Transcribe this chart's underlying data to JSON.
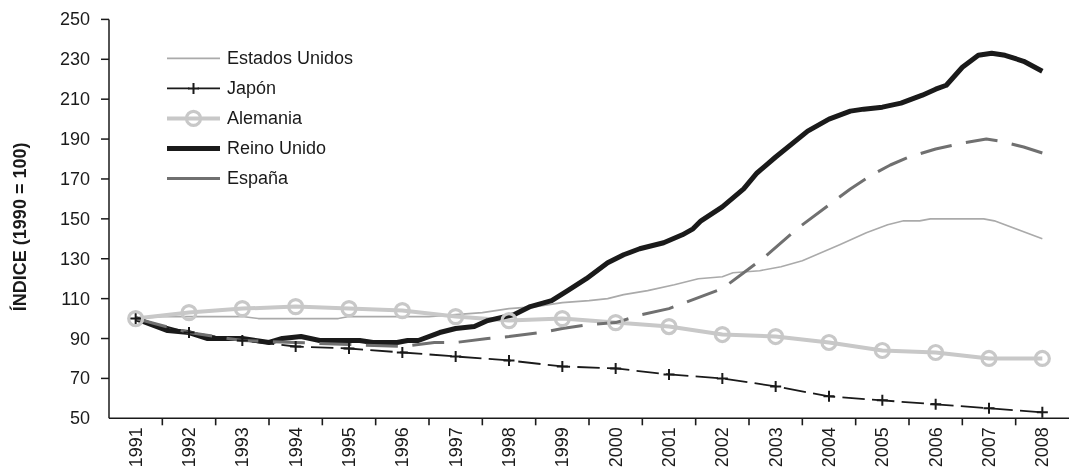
{
  "chart_data": {
    "type": "line",
    "ylabel": "ÍNDICE (1990 = 100)",
    "x": [
      1991,
      1992,
      1993,
      1994,
      1995,
      1996,
      1997,
      1998,
      1999,
      2000,
      2001,
      2002,
      2003,
      2004,
      2005,
      2006,
      2007,
      2008
    ],
    "xlim": [
      1990.5,
      2008.5
    ],
    "xticks": [
      1991,
      {
        "value": 1991.5,
        "label": null
      },
      1992,
      {
        "value": 1992.5,
        "label": null
      },
      1993,
      {
        "value": 1993.5,
        "label": null
      },
      1994,
      {
        "value": 1994.5,
        "label": null
      },
      1995,
      {
        "value": 1995.5,
        "label": null
      },
      1996,
      {
        "value": 1996.5,
        "label": null
      },
      1997,
      {
        "value": 1997.5,
        "label": null
      },
      1998,
      {
        "value": 1998.5,
        "label": null
      },
      1999,
      {
        "value": 1999.5,
        "label": null
      },
      2000,
      {
        "value": 2000.5,
        "label": null
      },
      2001,
      {
        "value": 2001.5,
        "label": null
      },
      2002,
      {
        "value": 2002.5,
        "label": null
      },
      2003,
      {
        "value": 2003.5,
        "label": null
      },
      2004,
      {
        "value": 2004.5,
        "label": null
      },
      2005,
      {
        "value": 2005.5,
        "label": null
      },
      2006,
      {
        "value": 2006.5,
        "label": null
      },
      2007,
      {
        "value": 2007.5,
        "label": null
      },
      2008
    ],
    "ylim": [
      50,
      250
    ],
    "yticks": [
      50,
      70,
      90,
      110,
      130,
      150,
      170,
      190,
      210,
      230,
      250
    ],
    "legend": "top left",
    "marker": "none",
    "line_style": "solid",
    "series": [
      {
        "name": "Estados Unidos",
        "color": "#aaaaaa",
        "x": [
          1991,
          1991.5,
          1992,
          1992.6,
          1993,
          1993.3,
          1994,
          1994.8,
          1995,
          1996,
          1996.5,
          1997,
          1997.5,
          1998,
          1998.5,
          1999,
          1999.5,
          1999.85,
          2000.15,
          2000.6,
          2001.1,
          2001.55,
          2002,
          2002.2,
          2002.7,
          2003.1,
          2003.5,
          2004.2,
          2004.7,
          2005.1,
          2005.4,
          2005.7,
          2005.9,
          2006.9,
          2007.1,
          2008
        ],
        "values": [
          100,
          101,
          101,
          101,
          101,
          100,
          100,
          100,
          101,
          101,
          101,
          102,
          103,
          105,
          106,
          108,
          109,
          110,
          112,
          114,
          117,
          120,
          121,
          123,
          124,
          126,
          129,
          137,
          143,
          147,
          149,
          149,
          150,
          150,
          149,
          140
        ]
      },
      {
        "name": "Japón",
        "color": "#1a1a1a",
        "marker": "cross",
        "line_style": "dashed",
        "values": [
          100,
          93,
          89,
          86,
          85,
          83,
          81,
          79,
          76,
          75,
          72,
          70,
          66,
          61,
          59,
          57,
          55,
          53
        ]
      },
      {
        "name": "Alemania",
        "color": "#c8c8c8",
        "marker": "circle",
        "values": [
          100,
          103,
          105,
          106,
          105,
          104,
          101,
          99,
          100,
          98,
          96,
          92,
          91,
          88,
          84,
          83,
          80,
          80
        ]
      },
      {
        "name": "Reino Unido",
        "color": "#1a1a1a",
        "x": [
          1991,
          1991.3,
          1991.6,
          1992,
          1992.35,
          1993,
          1993.5,
          1993.75,
          1994.1,
          1994.45,
          1995.2,
          1995.45,
          1995.9,
          1996.1,
          1996.3,
          1996.7,
          1997,
          1997.35,
          1997.6,
          1998.1,
          1998.4,
          1998.8,
          1999.1,
          1999.45,
          1999.85,
          2000.15,
          2000.45,
          2000.9,
          2001.25,
          2001.45,
          2001.6,
          2002,
          2002.4,
          2002.65,
          2003,
          2003.6,
          2004,
          2004.4,
          2004.65,
          2005,
          2005.35,
          2005.75,
          2006,
          2006.2,
          2006.5,
          2006.8,
          2007.05,
          2007.3,
          2007.65,
          2008
        ],
        "values": [
          100,
          97,
          94,
          93,
          90,
          90,
          88,
          90,
          91,
          89,
          89,
          88,
          88,
          89,
          89,
          93,
          95,
          96,
          99,
          102,
          106,
          109,
          114,
          120,
          128,
          132,
          135,
          138,
          142,
          145,
          149,
          156,
          165,
          173,
          181,
          194,
          200,
          204,
          205,
          206,
          208,
          212,
          215,
          217,
          226,
          232,
          233,
          232,
          229,
          224
        ]
      },
      {
        "name": "España",
        "color": "#707070",
        "line_style": "dashed",
        "x": [
          1991,
          1992,
          1993,
          1994,
          1995,
          1996,
          1996.6,
          1997,
          1997.6,
          1998,
          1998.6,
          1999,
          1999.5,
          2000,
          2000.5,
          2001,
          2001.5,
          2002,
          2002.4,
          2002.8,
          2003.4,
          2004,
          2004.4,
          2004.8,
          2005.15,
          2005.5,
          2006,
          2006.5,
          2006.95,
          2007.2,
          2007.65,
          2008
        ],
        "values": [
          100,
          93,
          89,
          88,
          87,
          86,
          88,
          88,
          90,
          91,
          93,
          95,
          97,
          98,
          102,
          105,
          110,
          115,
          123,
          131,
          145,
          157,
          165,
          172,
          177,
          181,
          185,
          188,
          190,
          189,
          186,
          183
        ]
      }
    ]
  }
}
